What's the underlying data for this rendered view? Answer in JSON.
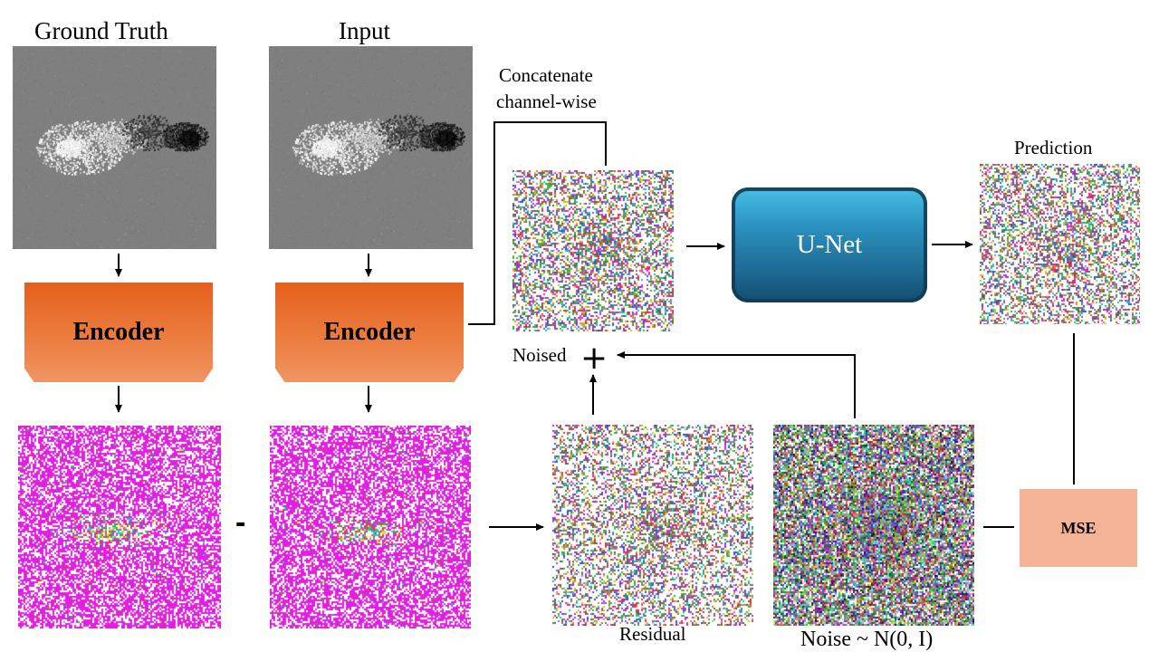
{
  "labels": {
    "ground_truth": "Ground Truth",
    "input": "Input",
    "concat_line1": "Concatenate",
    "concat_line2": "channel-wise",
    "prediction": "Prediction",
    "noised": "Noised",
    "residual": "Residual",
    "noise": "Noise ~ N(0, I)"
  },
  "blocks": {
    "encoder_left": "Encoder",
    "encoder_right": "Encoder",
    "unet": "U-Net",
    "mse": "MSE"
  },
  "operators": {
    "plus": "+",
    "minus": "-"
  },
  "colors": {
    "encoder": "#e8661f",
    "unet": "#1f6f97",
    "mse": "#f3b394",
    "latent": "#e020e0"
  }
}
